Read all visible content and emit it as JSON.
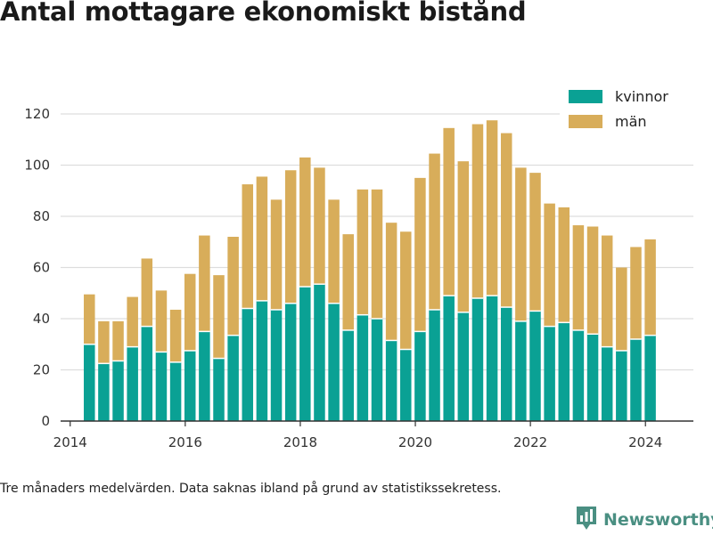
{
  "title": "Antal mottagare ekonomiskt bistånd",
  "caption": "Tre månaders medelvärden. Data saknas ibland på grund av statistikssekretess.",
  "brand": {
    "name": "Newsworthy",
    "icon": "bar-chart-pin-icon",
    "color": "#4a8f82"
  },
  "chart_data": {
    "type": "bar",
    "stacked": true,
    "x_type": "date",
    "x": [
      "2014-05",
      "2014-08",
      "2014-11",
      "2015-02",
      "2015-05",
      "2015-08",
      "2015-11",
      "2016-02",
      "2016-05",
      "2016-08",
      "2016-11",
      "2017-02",
      "2017-05",
      "2017-08",
      "2017-11",
      "2018-02",
      "2018-05",
      "2018-08",
      "2018-11",
      "2019-02",
      "2019-05",
      "2019-08",
      "2019-11",
      "2020-02",
      "2020-05",
      "2020-08",
      "2020-11",
      "2021-02",
      "2021-05",
      "2021-08",
      "2021-11",
      "2022-02",
      "2022-05",
      "2022-08",
      "2022-11",
      "2023-02",
      "2023-05",
      "2023-08",
      "2023-11",
      "2024-02"
    ],
    "series": [
      {
        "name": "kvinnor",
        "color": "#0aa194",
        "values": [
          30,
          22.5,
          23.5,
          29,
          37,
          27,
          23,
          27.5,
          35,
          24.5,
          33.5,
          44,
          47,
          43.5,
          46,
          52.5,
          53.5,
          46,
          35.5,
          41.5,
          40,
          31.5,
          28,
          35,
          43.5,
          49,
          42.5,
          48,
          49,
          44.5,
          39,
          43,
          37,
          38.5,
          35.5,
          34,
          29,
          27.5,
          32,
          33.5
        ]
      },
      {
        "name": "män",
        "color": "#d8ad5a",
        "values": [
          19.5,
          16.5,
          15.5,
          19.5,
          26.5,
          24,
          20.5,
          30,
          37.5,
          32.5,
          38.5,
          48.5,
          48.5,
          43,
          52,
          50.5,
          45.5,
          40.5,
          37.5,
          49,
          50.5,
          46,
          46,
          60,
          61,
          65.5,
          59,
          68,
          68.5,
          68,
          60,
          54,
          48,
          45,
          41,
          42,
          43.5,
          32.5,
          36,
          37.5
        ]
      }
    ],
    "x_ticks": [
      "2014",
      "2016",
      "2018",
      "2020",
      "2022",
      "2024"
    ],
    "y_ticks": [
      0,
      20,
      40,
      60,
      80,
      100,
      120
    ],
    "xlim": [
      "2013-11",
      "2024-11"
    ],
    "ylim": [
      0,
      120
    ],
    "grid": "horizontal",
    "legend_position": "top-right"
  }
}
